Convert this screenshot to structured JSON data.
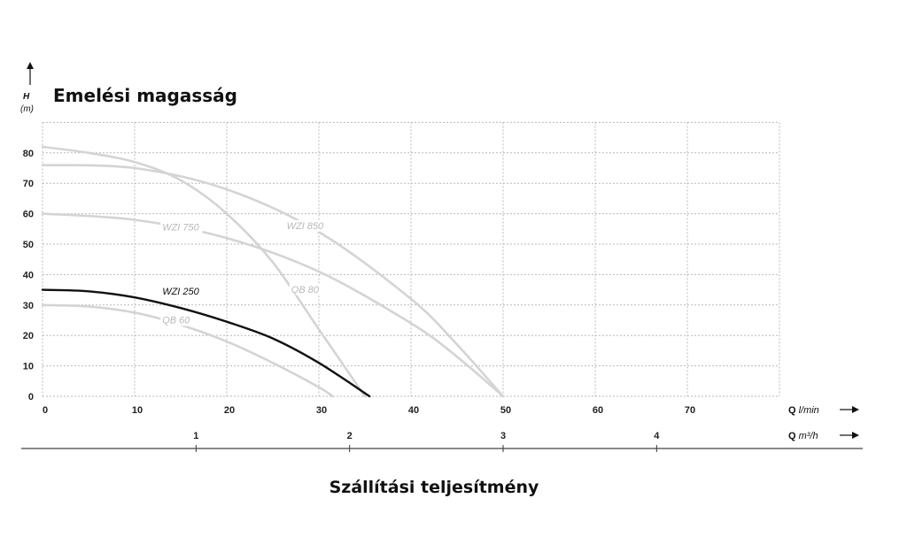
{
  "chart_data": {
    "type": "line",
    "title": "Emelési magasság",
    "xlabel": "Szállítási teljesítmény",
    "y_axis": {
      "label": "H",
      "unit": "(m)",
      "ticks": [
        0,
        10,
        20,
        30,
        40,
        50,
        60,
        70,
        80
      ],
      "range": [
        0,
        90
      ]
    },
    "x_axis": {
      "label": "Q",
      "unit": "l/min",
      "ticks": [
        0,
        10,
        20,
        30,
        40,
        50,
        60,
        70
      ],
      "range": [
        0,
        80
      ]
    },
    "x_axis_secondary": {
      "label": "Q",
      "unit": "m³/h",
      "ticks": [
        1,
        2,
        3,
        4
      ]
    },
    "grid": true,
    "series": [
      {
        "name": "WZI 250",
        "color": "#111111",
        "highlight": true,
        "x": [
          0,
          5,
          10,
          15,
          20,
          25,
          30,
          35.5
        ],
        "y": [
          35,
          34.5,
          32.5,
          29,
          24.5,
          19,
          11,
          0
        ]
      },
      {
        "name": "QB 60",
        "color": "#d4d4d4",
        "x": [
          0,
          5,
          10,
          15,
          20,
          25,
          30,
          31.5
        ],
        "y": [
          30,
          29.5,
          27.5,
          23.5,
          18,
          11,
          3,
          0
        ]
      },
      {
        "name": "QB 80",
        "color": "#d4d4d4",
        "x": [
          0,
          5,
          10,
          15,
          20,
          25,
          30,
          35
        ],
        "y": [
          82,
          80,
          77,
          71,
          60,
          44,
          22,
          0
        ]
      },
      {
        "name": "WZI 750",
        "color": "#d4d4d4",
        "x": [
          0,
          10,
          20,
          30,
          40,
          45,
          50
        ],
        "y": [
          60,
          58,
          52,
          41,
          24,
          13,
          0
        ]
      },
      {
        "name": "WZI 850",
        "color": "#d4d4d4",
        "x": [
          0,
          10,
          20,
          30,
          40,
          45,
          50
        ],
        "y": [
          76,
          75,
          68,
          54,
          32,
          17,
          0
        ]
      }
    ]
  }
}
